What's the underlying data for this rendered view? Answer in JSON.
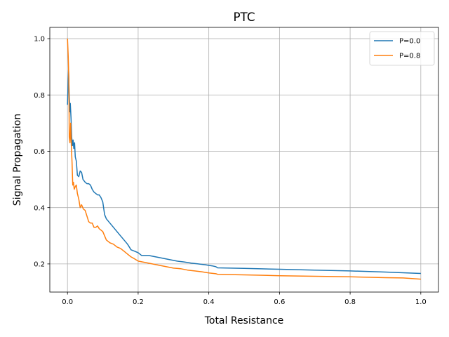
{
  "chart_data": {
    "type": "line",
    "title": "PTC",
    "xlabel": "Total Resistance",
    "ylabel": "Signal Propagation",
    "xlim": [
      -0.05,
      1.05
    ],
    "ylim": [
      0.1,
      1.04
    ],
    "xticks": [
      0.0,
      0.2,
      0.4,
      0.6,
      0.8,
      1.0
    ],
    "xtick_labels": [
      "0.0",
      "0.2",
      "0.4",
      "0.6",
      "0.8",
      "1.0"
    ],
    "yticks": [
      0.2,
      0.4,
      0.6,
      0.8,
      1.0
    ],
    "ytick_labels": [
      "0.2",
      "0.4",
      "0.6",
      "0.8",
      "1.0"
    ],
    "grid": true,
    "legend_position": "top-right",
    "series": [
      {
        "name": "P=0.0",
        "color": "#1f77b4",
        "points": [
          [
            0.0,
            0.765
          ],
          [
            0.003,
            0.89
          ],
          [
            0.005,
            0.8
          ],
          [
            0.007,
            0.74
          ],
          [
            0.008,
            0.77
          ],
          [
            0.01,
            0.72
          ],
          [
            0.012,
            0.65
          ],
          [
            0.014,
            0.62
          ],
          [
            0.016,
            0.64
          ],
          [
            0.018,
            0.61
          ],
          [
            0.02,
            0.63
          ],
          [
            0.022,
            0.58
          ],
          [
            0.025,
            0.565
          ],
          [
            0.028,
            0.515
          ],
          [
            0.032,
            0.51
          ],
          [
            0.036,
            0.53
          ],
          [
            0.04,
            0.525
          ],
          [
            0.044,
            0.5
          ],
          [
            0.05,
            0.49
          ],
          [
            0.055,
            0.485
          ],
          [
            0.06,
            0.485
          ],
          [
            0.065,
            0.48
          ],
          [
            0.07,
            0.465
          ],
          [
            0.075,
            0.455
          ],
          [
            0.08,
            0.45
          ],
          [
            0.085,
            0.445
          ],
          [
            0.09,
            0.445
          ],
          [
            0.095,
            0.435
          ],
          [
            0.1,
            0.42
          ],
          [
            0.105,
            0.375
          ],
          [
            0.11,
            0.36
          ],
          [
            0.12,
            0.345
          ],
          [
            0.13,
            0.33
          ],
          [
            0.14,
            0.315
          ],
          [
            0.15,
            0.3
          ],
          [
            0.16,
            0.285
          ],
          [
            0.17,
            0.27
          ],
          [
            0.18,
            0.25
          ],
          [
            0.19,
            0.245
          ],
          [
            0.2,
            0.24
          ],
          [
            0.21,
            0.23
          ],
          [
            0.22,
            0.23
          ],
          [
            0.23,
            0.23
          ],
          [
            0.25,
            0.225
          ],
          [
            0.27,
            0.22
          ],
          [
            0.29,
            0.215
          ],
          [
            0.31,
            0.21
          ],
          [
            0.33,
            0.207
          ],
          [
            0.35,
            0.203
          ],
          [
            0.37,
            0.2
          ],
          [
            0.39,
            0.197
          ],
          [
            0.41,
            0.193
          ],
          [
            0.42,
            0.19
          ],
          [
            0.425,
            0.186
          ],
          [
            0.5,
            0.184
          ],
          [
            0.6,
            0.181
          ],
          [
            0.7,
            0.178
          ],
          [
            0.8,
            0.175
          ],
          [
            0.9,
            0.171
          ],
          [
            1.0,
            0.166
          ]
        ]
      },
      {
        "name": "P=0.8",
        "color": "#ff7f0e",
        "points": [
          [
            0.0,
            1.0
          ],
          [
            0.002,
            0.94
          ],
          [
            0.004,
            0.85
          ],
          [
            0.005,
            0.65
          ],
          [
            0.007,
            0.63
          ],
          [
            0.009,
            0.7
          ],
          [
            0.011,
            0.62
          ],
          [
            0.013,
            0.56
          ],
          [
            0.015,
            0.48
          ],
          [
            0.017,
            0.49
          ],
          [
            0.019,
            0.465
          ],
          [
            0.022,
            0.475
          ],
          [
            0.025,
            0.48
          ],
          [
            0.028,
            0.45
          ],
          [
            0.032,
            0.43
          ],
          [
            0.036,
            0.4
          ],
          [
            0.04,
            0.41
          ],
          [
            0.045,
            0.395
          ],
          [
            0.05,
            0.39
          ],
          [
            0.055,
            0.37
          ],
          [
            0.06,
            0.35
          ],
          [
            0.065,
            0.345
          ],
          [
            0.07,
            0.345
          ],
          [
            0.075,
            0.33
          ],
          [
            0.08,
            0.33
          ],
          [
            0.085,
            0.335
          ],
          [
            0.09,
            0.325
          ],
          [
            0.1,
            0.315
          ],
          [
            0.11,
            0.285
          ],
          [
            0.12,
            0.275
          ],
          [
            0.13,
            0.27
          ],
          [
            0.14,
            0.26
          ],
          [
            0.15,
            0.255
          ],
          [
            0.16,
            0.245
          ],
          [
            0.17,
            0.235
          ],
          [
            0.18,
            0.225
          ],
          [
            0.19,
            0.218
          ],
          [
            0.2,
            0.21
          ],
          [
            0.22,
            0.205
          ],
          [
            0.24,
            0.2
          ],
          [
            0.26,
            0.195
          ],
          [
            0.28,
            0.19
          ],
          [
            0.3,
            0.185
          ],
          [
            0.32,
            0.183
          ],
          [
            0.34,
            0.178
          ],
          [
            0.36,
            0.175
          ],
          [
            0.38,
            0.172
          ],
          [
            0.4,
            0.168
          ],
          [
            0.42,
            0.165
          ],
          [
            0.425,
            0.163
          ],
          [
            0.5,
            0.161
          ],
          [
            0.6,
            0.158
          ],
          [
            0.7,
            0.156
          ],
          [
            0.8,
            0.154
          ],
          [
            0.9,
            0.151
          ],
          [
            0.95,
            0.15
          ],
          [
            1.0,
            0.146
          ]
        ]
      }
    ]
  }
}
